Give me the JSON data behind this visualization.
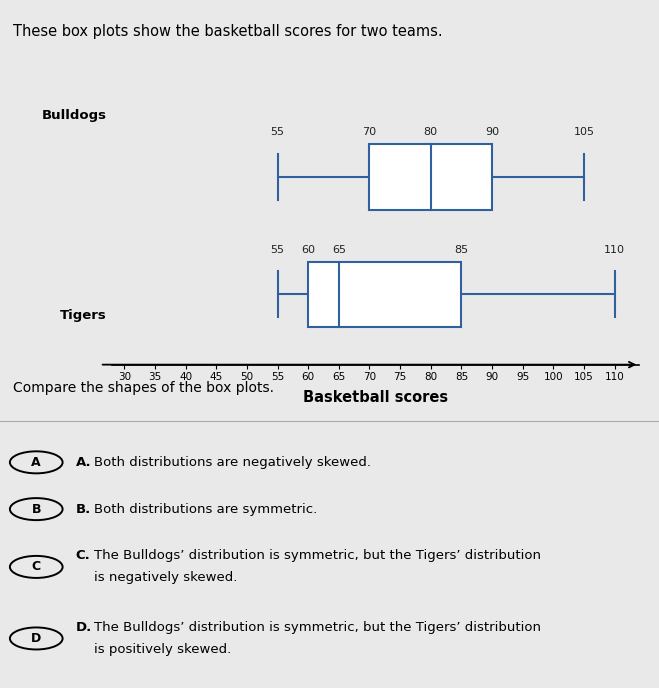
{
  "title": "These box plots show the basketball scores for two teams.",
  "subtitle": "Compare the shapes of the box plots.",
  "xlabel": "Basketball scores",
  "background_color": "#e8e8e8",
  "bulldogs": {
    "label": "Bulldogs",
    "whisker_low": 55,
    "q1": 70,
    "median": 80,
    "q3": 90,
    "whisker_high": 105,
    "label_values": [
      55,
      70,
      80,
      90,
      105
    ]
  },
  "tigers": {
    "label": "Tigers",
    "whisker_low": 55,
    "q1": 60,
    "median": 65,
    "q3": 85,
    "whisker_high": 110,
    "label_values": [
      55,
      60,
      65,
      85,
      110
    ]
  },
  "axis_min": 28,
  "axis_max": 114,
  "axis_ticks": [
    30,
    35,
    40,
    45,
    50,
    55,
    60,
    65,
    70,
    75,
    80,
    85,
    90,
    95,
    100,
    105,
    110
  ],
  "box_color": "#3060a0",
  "answer_options": [
    {
      "letter": "A",
      "bold_part": "A.",
      "text": " Both distributions are negatively skewed."
    },
    {
      "letter": "B",
      "bold_part": "B.",
      "text": " Both distributions are symmetric."
    },
    {
      "letter": "C",
      "bold_part": "C.",
      "text": " The Bulldogs’ distribution is symmetric, but the Tigers’ distribution\n     is negatively skewed."
    },
    {
      "letter": "D",
      "bold_part": "D.",
      "text": " The Bulldogs’ distribution is symmetric, but the Tigers’ distribution\n     is positively skewed."
    }
  ]
}
